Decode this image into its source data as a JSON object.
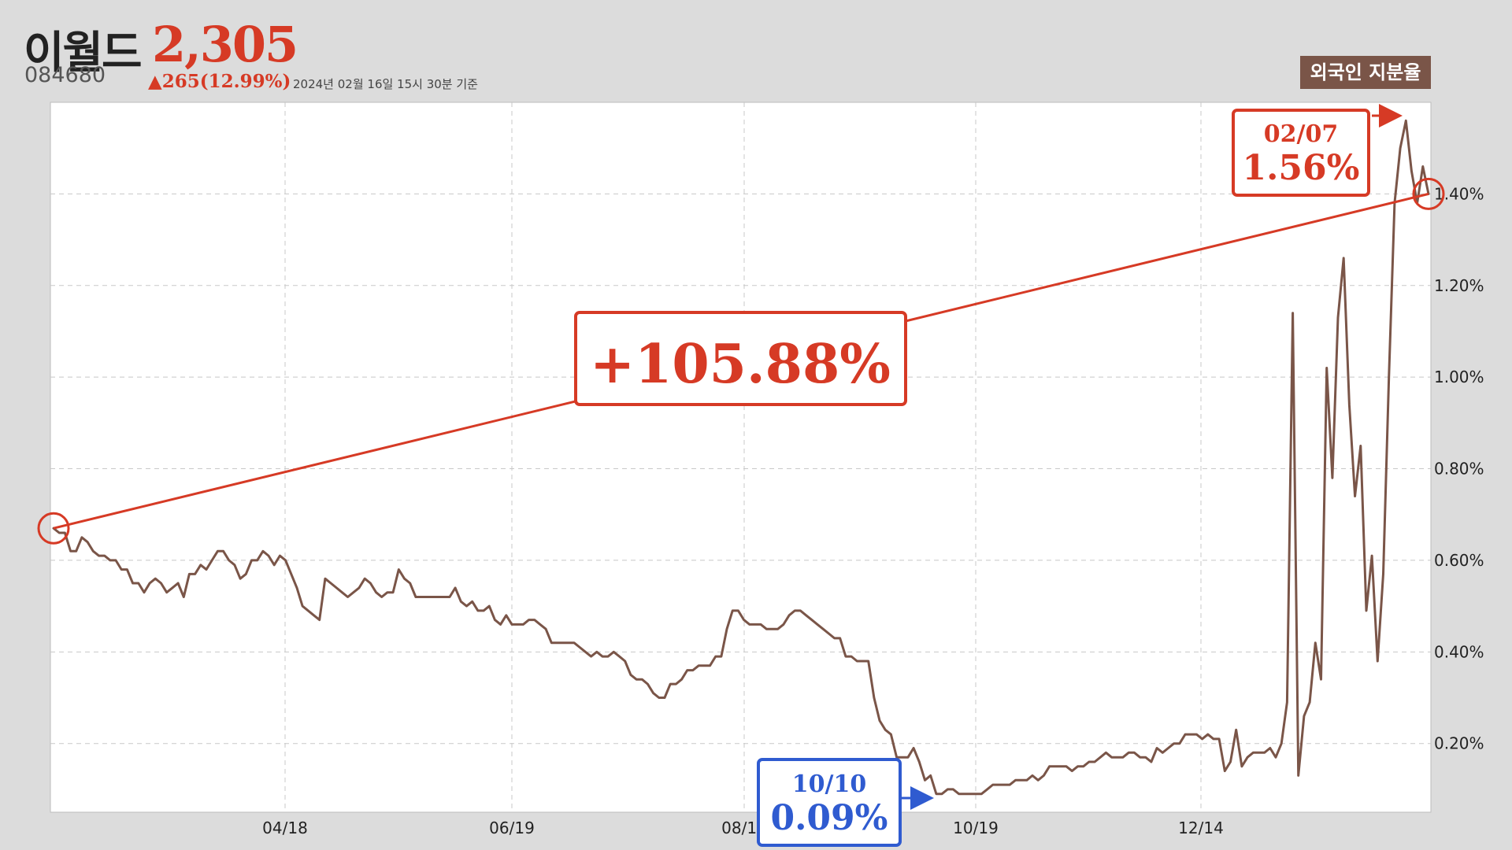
{
  "header": {
    "name": "이월드",
    "price": "2,305",
    "code": "084680",
    "change": "▲265(12.99%)",
    "timestamp": "2024년 02월 16일 15시 30분 기준",
    "badge": "외국인 지분율"
  },
  "colors": {
    "background": "#dcdcdc",
    "line": "#7a5548",
    "up": "#d63a25",
    "down": "#2f5bd0"
  },
  "callouts": {
    "high": {
      "date": "02/07",
      "value": "1.56%"
    },
    "low": {
      "date": "10/10",
      "value": "0.09%"
    },
    "change": "+105.88%"
  },
  "chart_data": {
    "type": "line",
    "title": "외국인 지분율",
    "grid": true,
    "y_axis_side": "right",
    "ylim": [
      0.05,
      1.6
    ],
    "yticks": [
      "0.20%",
      "0.40%",
      "0.60%",
      "0.80%",
      "1.00%",
      "1.20%",
      "1.40%"
    ],
    "yticks_values": [
      0.2,
      0.4,
      0.6,
      0.8,
      1.0,
      1.2,
      1.4
    ],
    "xticks": [
      "04/18",
      "06/19",
      "08/18",
      "10/19",
      "12/14"
    ],
    "series": [
      {
        "name": "외국인 지분율",
        "values": [
          0.67,
          0.66,
          0.66,
          0.62,
          0.62,
          0.65,
          0.64,
          0.62,
          0.61,
          0.61,
          0.6,
          0.6,
          0.58,
          0.58,
          0.55,
          0.55,
          0.53,
          0.55,
          0.56,
          0.55,
          0.53,
          0.54,
          0.55,
          0.52,
          0.57,
          0.57,
          0.59,
          0.58,
          0.6,
          0.62,
          0.62,
          0.6,
          0.59,
          0.56,
          0.57,
          0.6,
          0.6,
          0.62,
          0.61,
          0.59,
          0.61,
          0.6,
          0.57,
          0.54,
          0.5,
          0.49,
          0.48,
          0.47,
          0.56,
          0.55,
          0.54,
          0.53,
          0.52,
          0.53,
          0.54,
          0.56,
          0.55,
          0.53,
          0.52,
          0.53,
          0.53,
          0.58,
          0.56,
          0.55,
          0.52,
          0.52,
          0.52,
          0.52,
          0.52,
          0.52,
          0.52,
          0.54,
          0.51,
          0.5,
          0.51,
          0.49,
          0.49,
          0.5,
          0.47,
          0.46,
          0.48,
          0.46,
          0.46,
          0.46,
          0.47,
          0.47,
          0.46,
          0.45,
          0.42,
          0.42,
          0.42,
          0.42,
          0.42,
          0.41,
          0.4,
          0.39,
          0.4,
          0.39,
          0.39,
          0.4,
          0.39,
          0.38,
          0.35,
          0.34,
          0.34,
          0.33,
          0.31,
          0.3,
          0.3,
          0.33,
          0.33,
          0.34,
          0.36,
          0.36,
          0.37,
          0.37,
          0.37,
          0.39,
          0.39,
          0.45,
          0.49,
          0.49,
          0.47,
          0.46,
          0.46,
          0.46,
          0.45,
          0.45,
          0.45,
          0.46,
          0.48,
          0.49,
          0.49,
          0.48,
          0.47,
          0.46,
          0.45,
          0.44,
          0.43,
          0.43,
          0.39,
          0.39,
          0.38,
          0.38,
          0.38,
          0.3,
          0.25,
          0.23,
          0.22,
          0.17,
          0.17,
          0.17,
          0.19,
          0.16,
          0.12,
          0.13,
          0.09,
          0.09,
          0.1,
          0.1,
          0.09,
          0.09,
          0.09,
          0.09,
          0.09,
          0.1,
          0.11,
          0.11,
          0.11,
          0.11,
          0.12,
          0.12,
          0.12,
          0.13,
          0.12,
          0.13,
          0.15,
          0.15,
          0.15,
          0.15,
          0.14,
          0.15,
          0.15,
          0.16,
          0.16,
          0.17,
          0.18,
          0.17,
          0.17,
          0.17,
          0.18,
          0.18,
          0.17,
          0.17,
          0.16,
          0.19,
          0.18,
          0.19,
          0.2,
          0.2,
          0.22,
          0.22,
          0.22,
          0.21,
          0.22,
          0.21,
          0.21,
          0.14,
          0.16,
          0.23,
          0.15,
          0.17,
          0.18,
          0.18,
          0.18,
          0.19,
          0.17,
          0.2,
          0.29,
          1.14,
          0.13,
          0.26,
          0.29,
          0.42,
          0.34,
          1.02,
          0.78,
          1.13,
          1.26,
          0.94,
          0.74,
          0.85,
          0.49,
          0.61,
          0.38,
          0.57,
          1.0,
          1.38,
          1.5,
          1.56,
          1.45,
          1.38,
          1.46,
          1.4
        ]
      }
    ]
  }
}
